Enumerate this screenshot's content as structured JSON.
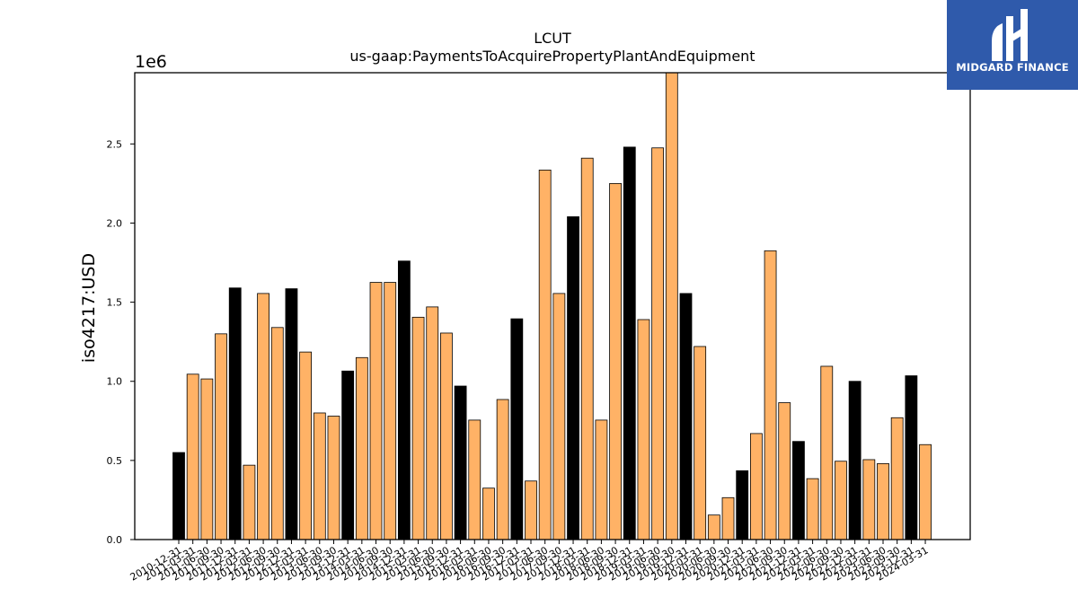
{
  "chart_data": {
    "type": "bar",
    "title": "LCUT",
    "subtitle": "us-gaap:PaymentsToAcquirePropertyPlantAndEquipment",
    "ylabel": "iso4217:USD",
    "xlabel": "",
    "y_scale_label": "1e6",
    "y_scale": 1000000,
    "ylim": [
      0,
      2950000
    ],
    "yticks": [
      "0.0",
      "0.5",
      "1.0",
      "1.5",
      "2.0",
      "2.5"
    ],
    "colors": {
      "fy": "#000000",
      "q": "#ffb266",
      "edge": "#000000"
    },
    "categories": [
      "2010-12-31",
      "2011-03-31",
      "2011-06-30",
      "2011-09-30",
      "2011-12-31",
      "2012-03-31",
      "2012-06-30",
      "2012-09-30",
      "2012-12-31",
      "2013-03-31",
      "2013-06-30",
      "2013-09-30",
      "2013-12-31",
      "2014-03-31",
      "2014-06-30",
      "2014-09-30",
      "2014-12-31",
      "2015-03-31",
      "2015-06-30",
      "2015-09-30",
      "2015-12-31",
      "2016-03-31",
      "2016-06-30",
      "2016-09-30",
      "2016-12-31",
      "2017-03-31",
      "2017-06-30",
      "2017-09-30",
      "2017-12-31",
      "2018-03-31",
      "2018-06-30",
      "2018-09-30",
      "2018-12-31",
      "2019-03-31",
      "2019-06-30",
      "2019-09-30",
      "2019-12-31",
      "2020-03-31",
      "2020-06-30",
      "2020-09-30",
      "2020-12-31",
      "2021-03-31",
      "2021-06-30",
      "2021-09-30",
      "2021-12-31",
      "2022-03-31",
      "2022-06-30",
      "2022-09-30",
      "2022-12-31",
      "2023-03-31",
      "2023-06-30",
      "2023-09-30",
      "2023-12-31",
      "2024-03-31"
    ],
    "values": [
      550000,
      1045000,
      1015000,
      1300000,
      1590000,
      470000,
      1555000,
      1340000,
      1585000,
      1185000,
      800000,
      780000,
      1065000,
      1150000,
      1625000,
      1625000,
      1760000,
      1405000,
      1470000,
      1305000,
      970000,
      755000,
      325000,
      885000,
      1395000,
      370000,
      2335000,
      1555000,
      2040000,
      2410000,
      755000,
      2250000,
      2480000,
      1390000,
      2475000,
      2950000,
      1555000,
      1220000,
      155000,
      265000,
      435000,
      670000,
      1825000,
      865000,
      620000,
      385000,
      1095000,
      495000,
      1000000,
      505000,
      480000,
      770000,
      1035000,
      600000
    ],
    "fiscal_year_end": [
      true,
      false,
      false,
      false,
      true,
      false,
      false,
      false,
      true,
      false,
      false,
      false,
      true,
      false,
      false,
      false,
      true,
      false,
      false,
      false,
      true,
      false,
      false,
      false,
      true,
      false,
      false,
      false,
      true,
      false,
      false,
      false,
      true,
      false,
      false,
      false,
      true,
      false,
      false,
      false,
      true,
      false,
      false,
      false,
      true,
      false,
      false,
      false,
      true,
      false,
      false,
      false,
      true,
      false
    ]
  },
  "logo": {
    "text": "MIDGARD FINANCE",
    "background": "#2f5aab"
  }
}
